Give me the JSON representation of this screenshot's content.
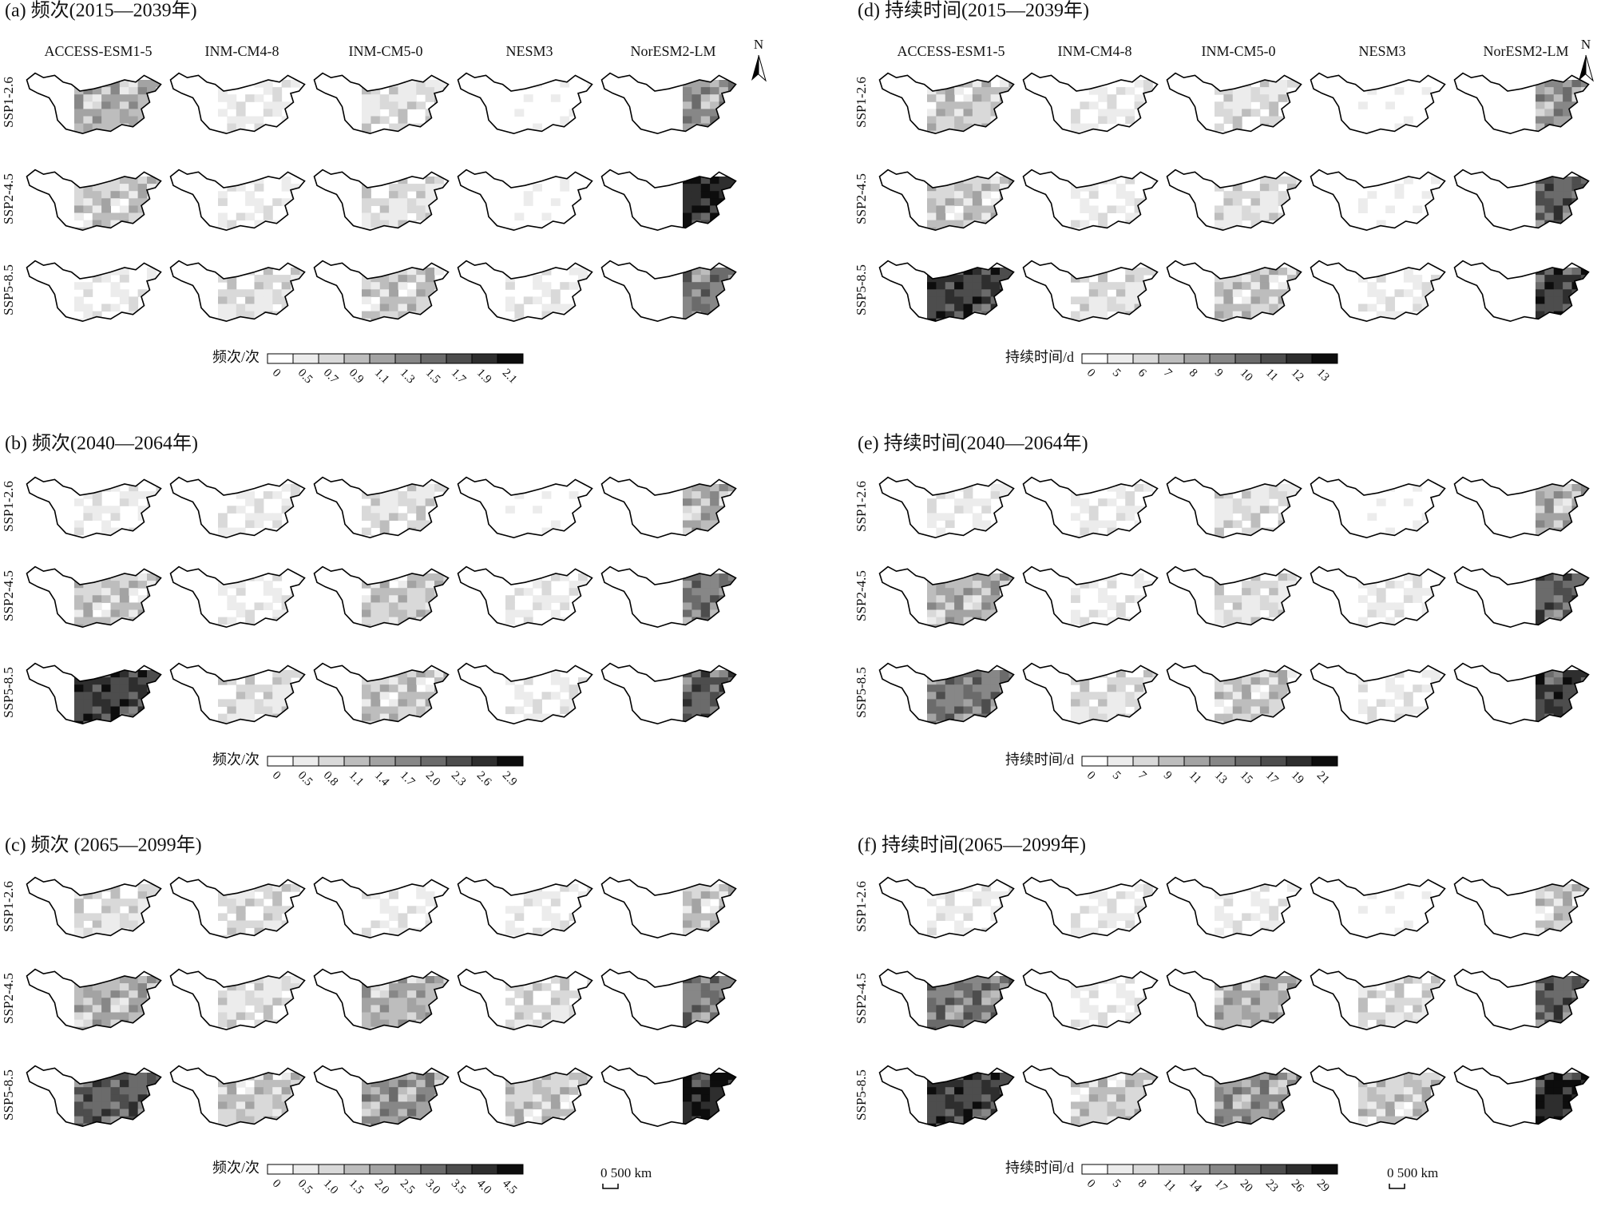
{
  "models": [
    "ACCESS-ESM1-5",
    "INM-CM4-8",
    "INM-CM5-0",
    "NESM3",
    "NorESM2-LM"
  ],
  "scenarios": [
    "SSP1-2.6",
    "SSP2-4.5",
    "SSP5-8.5"
  ],
  "north": "N",
  "scale_bar": "0 500 km",
  "colors": [
    "#ffffff",
    "#ececec",
    "#d9d9d9",
    "#bdbdbd",
    "#a3a3a3",
    "#878787",
    "#6b6b6b",
    "#4d4d4d",
    "#2e2e2e",
    "#0d0d0d"
  ],
  "panels": [
    {
      "title": "(a) 频次(2015—2039年)",
      "legend_title": "频次/次",
      "legend_ticks": [
        0,
        0.5,
        0.7,
        0.9,
        1.1,
        1.3,
        1.5,
        1.7,
        1.9,
        2.1
      ],
      "levels": [
        [
          4,
          1,
          2,
          0,
          5
        ],
        [
          3,
          1,
          2,
          0,
          9
        ],
        [
          1,
          2,
          3,
          1,
          6
        ]
      ]
    },
    {
      "title": "(b) 频次(2040—2064年)",
      "legend_title": "频次/次",
      "legend_ticks": [
        0,
        0.5,
        0.8,
        1.1,
        1.4,
        1.7,
        {
          "value": 2,
          "label": "2.0"
        },
        2.3,
        2.6,
        2.9
      ],
      "levels": [
        [
          1,
          1,
          2,
          0,
          4
        ],
        [
          3,
          1,
          3,
          1,
          6
        ],
        [
          8,
          2,
          3,
          1,
          7
        ]
      ]
    },
    {
      "title": "(c) 频次 (2065—2099年)",
      "legend_title": "频次/次",
      "legend_ticks": [
        0,
        0.5,
        {
          "value": 1,
          "label": "1.0"
        },
        1.5,
        {
          "value": 2,
          "label": "2.0"
        },
        2.5,
        {
          "value": 3,
          "label": "3.0"
        },
        3.5,
        {
          "value": 4,
          "label": "4.0"
        },
        4.5
      ],
      "levels": [
        [
          2,
          2,
          1,
          1,
          3
        ],
        [
          4,
          2,
          4,
          2,
          6
        ],
        [
          7,
          3,
          5,
          3,
          9
        ]
      ]
    },
    {
      "title": "(d) 持续时间(2015—2039年)",
      "legend_title": "持续时间/d",
      "legend_ticks": [
        0,
        5,
        6,
        7,
        8,
        9,
        10,
        11,
        12,
        13
      ],
      "levels": [
        [
          3,
          1,
          2,
          0,
          5
        ],
        [
          3,
          1,
          2,
          0,
          7
        ],
        [
          8,
          2,
          3,
          1,
          8
        ]
      ]
    },
    {
      "title": "(e) 持续时间(2040—2064年)",
      "legend_title": "持续时间/d",
      "legend_ticks": [
        0,
        5,
        7,
        9,
        11,
        13,
        15,
        17,
        19,
        21
      ],
      "levels": [
        [
          1,
          1,
          2,
          0,
          4
        ],
        [
          4,
          1,
          2,
          1,
          7
        ],
        [
          6,
          2,
          3,
          1,
          8
        ]
      ]
    },
    {
      "title": "(f) 持续时间(2065—2099年)",
      "legend_title": "持续时间/d",
      "legend_ticks": [
        0,
        5,
        8,
        11,
        14,
        17,
        20,
        23,
        26,
        29
      ],
      "levels": [
        [
          1,
          1,
          1,
          0,
          3
        ],
        [
          6,
          1,
          4,
          2,
          7
        ],
        [
          8,
          3,
          5,
          3,
          9
        ]
      ]
    }
  ]
}
